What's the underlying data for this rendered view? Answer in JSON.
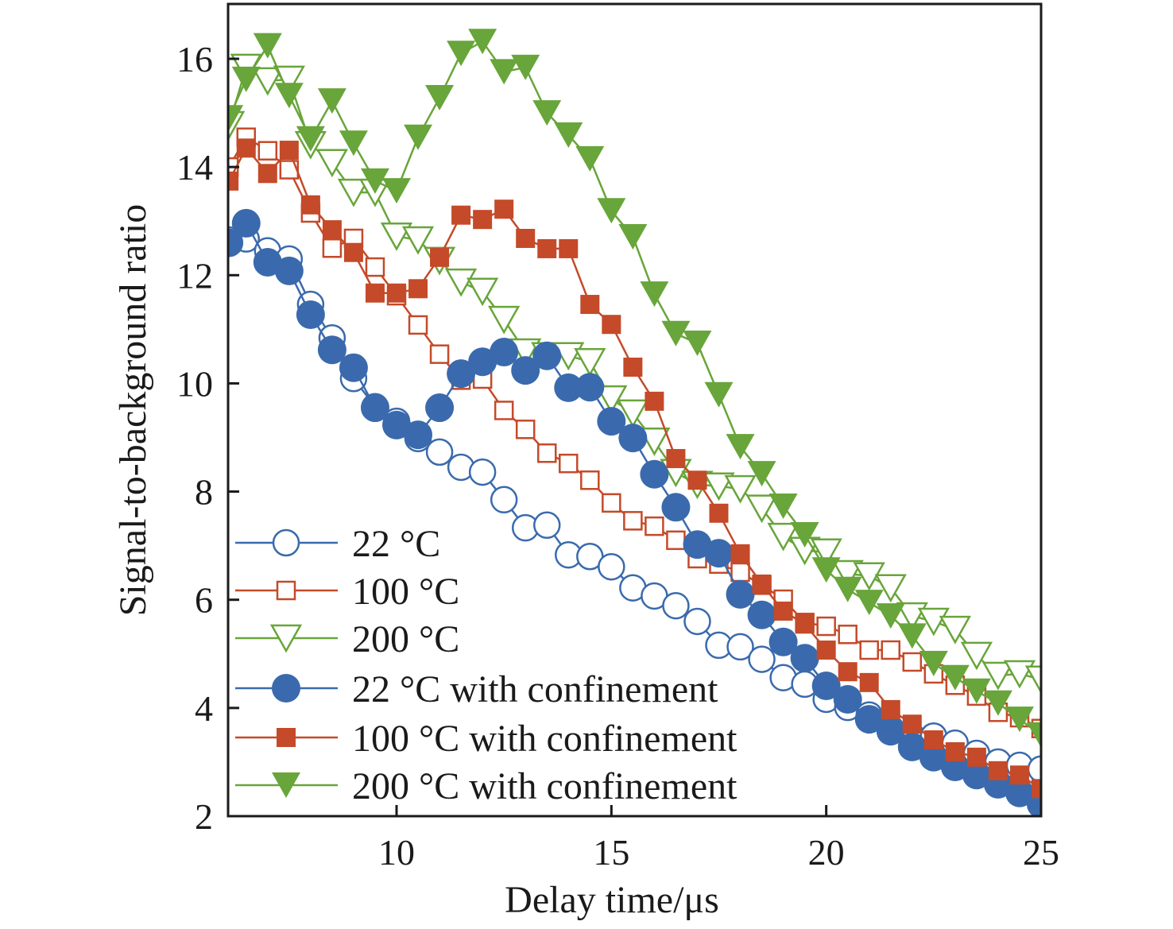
{
  "chart_data": {
    "type": "line",
    "title": "",
    "xlabel": "Delay time/μs",
    "ylabel": "Signal-to-background ratio",
    "xlim": [
      6.1,
      25
    ],
    "ylim": [
      2,
      17
    ],
    "xticks": [
      10,
      15,
      20,
      25
    ],
    "yticks": [
      2,
      4,
      6,
      8,
      10,
      12,
      14,
      16
    ],
    "grid": false,
    "legend_position": "bottom-left",
    "x": [
      6.1,
      6.5,
      7,
      7.5,
      8,
      8.5,
      9,
      9.5,
      10,
      10.5,
      11,
      11.5,
      12,
      12.5,
      13,
      13.5,
      14,
      14.5,
      15,
      15.5,
      16,
      16.5,
      17,
      17.5,
      18,
      18.5,
      19,
      19.5,
      20,
      20.5,
      21,
      21.5,
      22,
      22.5,
      23,
      23.5,
      24,
      24.5,
      25
    ],
    "series": [
      {
        "name": "22 °C",
        "color": "#3a6aad",
        "marker": "circle-open",
        "values": [
          12.65,
          12.67,
          12.45,
          12.3,
          11.46,
          10.84,
          10.09,
          9.57,
          9.3,
          8.98,
          8.73,
          8.45,
          8.36,
          7.85,
          7.33,
          7.38,
          6.83,
          6.8,
          6.61,
          6.22,
          6.07,
          5.89,
          5.6,
          5.16,
          5.13,
          4.9,
          4.56,
          4.44,
          4.16,
          4.01,
          3.87,
          3.62,
          3.47,
          3.48,
          3.35,
          3.16,
          3.0,
          2.94,
          2.87
        ]
      },
      {
        "name": "100 °C",
        "color": "#c44a29",
        "marker": "square-open",
        "values": [
          14.0,
          14.55,
          14.3,
          13.95,
          13.15,
          12.5,
          12.68,
          12.15,
          11.62,
          11.08,
          10.54,
          10.06,
          10.08,
          9.5,
          9.15,
          8.71,
          8.52,
          8.21,
          7.79,
          7.46,
          7.36,
          7.1,
          6.76,
          6.66,
          6.51,
          6.27,
          6.01,
          5.58,
          5.51,
          5.36,
          5.07,
          5.07,
          4.85,
          4.63,
          4.42,
          4.22,
          3.92,
          3.82,
          3.62
        ]
      },
      {
        "name": "200 °C",
        "color": "#68a53a",
        "marker": "triangle-down-open",
        "values": [
          14.78,
          15.84,
          15.59,
          15.62,
          14.41,
          14.08,
          13.53,
          13.53,
          12.72,
          12.65,
          12.27,
          11.87,
          11.7,
          11.18,
          10.58,
          10.51,
          10.51,
          10.4,
          9.71,
          9.45,
          8.93,
          8.35,
          8.13,
          8.1,
          8.05,
          7.69,
          7.17,
          6.91,
          6.88,
          6.48,
          6.44,
          6.22,
          5.7,
          5.6,
          5.45,
          4.97,
          4.6,
          4.63,
          4.53
        ]
      },
      {
        "name": "22 °C with confinement",
        "color": "#3a6aad",
        "marker": "circle-filled",
        "values": [
          12.6,
          12.96,
          12.24,
          12.08,
          11.27,
          10.62,
          10.29,
          9.55,
          9.23,
          9.05,
          9.55,
          10.18,
          10.4,
          10.58,
          10.24,
          10.51,
          9.92,
          9.93,
          9.3,
          8.99,
          8.32,
          7.71,
          7.02,
          6.86,
          6.1,
          5.72,
          5.22,
          4.92,
          4.41,
          4.16,
          3.79,
          3.57,
          3.28,
          3.09,
          2.91,
          2.76,
          2.59,
          2.43,
          2.22
        ]
      },
      {
        "name": "100 °C with confinement",
        "color": "#c44a29",
        "marker": "square-filled",
        "values": [
          13.74,
          14.35,
          13.88,
          14.31,
          13.3,
          12.84,
          12.42,
          11.67,
          11.67,
          11.75,
          12.33,
          13.11,
          13.03,
          13.22,
          12.68,
          12.49,
          12.49,
          11.46,
          11.09,
          10.3,
          9.67,
          8.61,
          8.21,
          7.6,
          6.85,
          6.29,
          5.79,
          5.55,
          5.07,
          4.67,
          4.47,
          3.97,
          3.7,
          3.41,
          3.19,
          3.09,
          2.84,
          2.76,
          2.51
        ]
      },
      {
        "name": "200 °C with confinement",
        "color": "#68a53a",
        "marker": "triangle-down-filled",
        "values": [
          14.91,
          15.62,
          16.24,
          15.32,
          14.52,
          15.22,
          14.44,
          13.74,
          13.56,
          14.55,
          15.28,
          16.1,
          16.32,
          15.76,
          15.84,
          15.0,
          14.59,
          14.15,
          13.19,
          12.71,
          11.65,
          10.92,
          10.74,
          9.79,
          8.83,
          8.33,
          7.73,
          7.2,
          6.55,
          6.19,
          5.95,
          5.7,
          5.33,
          4.82,
          4.56,
          4.31,
          4.09,
          3.79,
          3.5
        ]
      }
    ]
  }
}
